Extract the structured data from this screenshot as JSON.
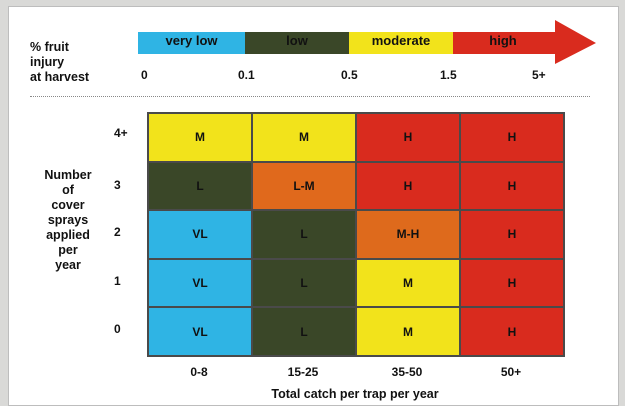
{
  "legend": {
    "title_line1": "% fruit",
    "title_line2": "injury",
    "title_line3": "at harvest",
    "segments": [
      {
        "label": "very low",
        "color": "#2fb4e4"
      },
      {
        "label": "low",
        "color": "#3a4728"
      },
      {
        "label": "moderate",
        "color": "#f2e31b"
      },
      {
        "label": "high",
        "color": "#d92b1e"
      }
    ],
    "ticks": [
      "0",
      "0.1",
      "0.5",
      "1.5",
      "5+"
    ]
  },
  "y_axis": {
    "title_lines": [
      "Number",
      "of",
      "cover",
      "sprays",
      "applied",
      "per",
      "year"
    ],
    "ticks": [
      "4+",
      "3",
      "2",
      "1",
      "0"
    ]
  },
  "x_axis": {
    "title": "Total catch per trap per year",
    "ticks": [
      "0-8",
      "15-25",
      "35-50",
      "50+"
    ]
  },
  "colors": {
    "VL": "#2fb4e4",
    "L": "#3a4728",
    "L-M": "#e0691c",
    "M": "#f2e31b",
    "M-H": "#de6a1c",
    "H": "#d92b1e"
  },
  "grid_rows": [
    {
      "sprays": "4+",
      "cells": [
        "M",
        "M",
        "H",
        "H"
      ]
    },
    {
      "sprays": "3",
      "cells": [
        "L",
        "L-M",
        "H",
        "H"
      ]
    },
    {
      "sprays": "2",
      "cells": [
        "VL",
        "L",
        "M-H",
        "H"
      ]
    },
    {
      "sprays": "1",
      "cells": [
        "VL",
        "L",
        "M",
        "H"
      ]
    },
    {
      "sprays": "0",
      "cells": [
        "VL",
        "L",
        "M",
        "H"
      ]
    }
  ]
}
